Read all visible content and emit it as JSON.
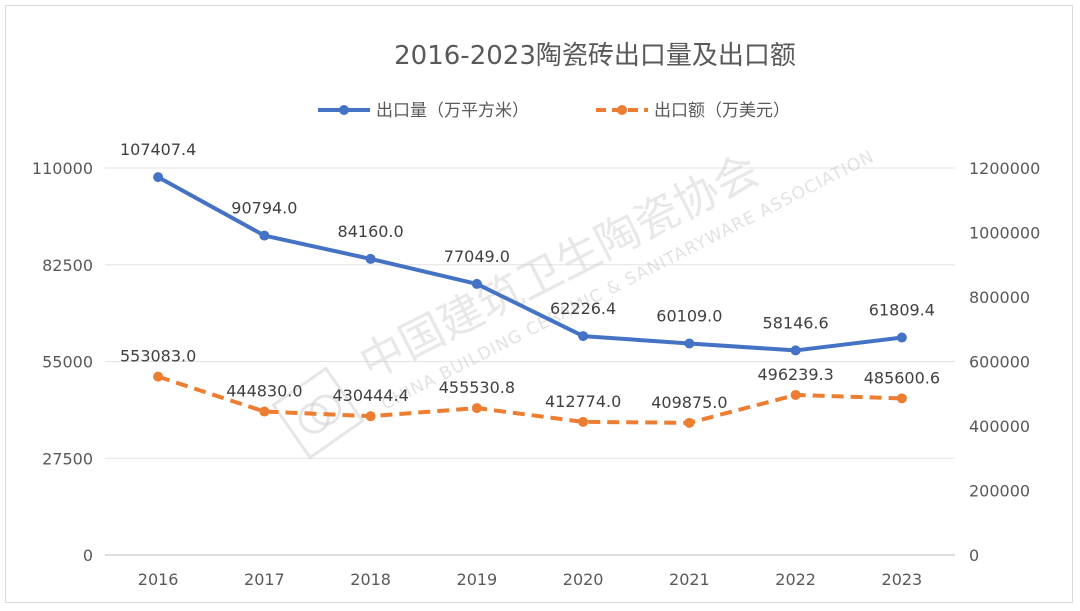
{
  "chart_data": {
    "type": "line",
    "title": "2016-2023陶瓷砖出口量及出口额",
    "categories": [
      "2016",
      "2017",
      "2018",
      "2019",
      "2020",
      "2021",
      "2022",
      "2023"
    ],
    "series": [
      {
        "name": "出口量（万平方米）",
        "axis": "left",
        "color": "#4472c4",
        "style": "solid",
        "values": [
          107407.4,
          90794.0,
          84160.0,
          77049.0,
          62226.4,
          60109.0,
          58146.6,
          61809.4
        ],
        "labels": [
          "107407.4",
          "90794.0",
          "84160.0",
          "77049.0",
          "62226.4",
          "60109.0",
          "58146.6",
          "61809.4"
        ]
      },
      {
        "name": "出口额（万美元）",
        "axis": "right",
        "color": "#ed7d31",
        "style": "dashed",
        "values": [
          553083.0,
          444830.0,
          430444.4,
          455530.8,
          412774.0,
          409875.0,
          496239.3,
          485600.6
        ],
        "labels": [
          "553083.0",
          "444830.0",
          "430444.4",
          "455530.8",
          "412774.0",
          "409875.0",
          "496239.3",
          "485600.6"
        ]
      }
    ],
    "y_left": {
      "ylim": [
        0,
        110000
      ],
      "ticks": [
        0,
        27500,
        55000,
        82500,
        110000
      ],
      "tick_labels": [
        "0",
        "27500",
        "55000",
        "82500",
        "110000"
      ]
    },
    "y_right": {
      "ylim": [
        0,
        1200000
      ],
      "ticks": [
        0,
        200000,
        400000,
        600000,
        800000,
        1000000,
        1200000
      ],
      "tick_labels": [
        "0",
        "200000",
        "400000",
        "600000",
        "800000",
        "1000000",
        "1200000"
      ]
    },
    "grid": true,
    "legend_position": "top"
  },
  "watermark": {
    "cn": "中国建筑卫生陶瓷协会",
    "en": "CHINA BUILDING CERAMIC & SANITARYWARE ASSOCIATION"
  }
}
